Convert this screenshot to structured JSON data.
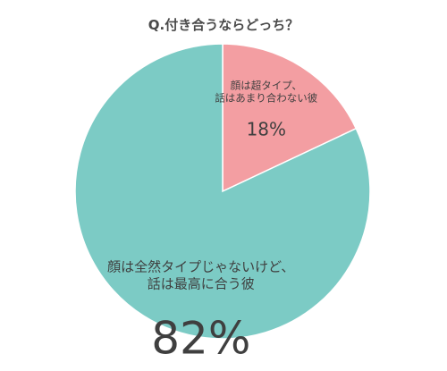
{
  "chart_data": {
    "type": "pie",
    "title": "Q.付き合うならどっち？",
    "slices": [
      {
        "label_lines": [
          "顔は超タイプ、",
          "話はあまり合わない彼"
        ],
        "value": 18,
        "value_label": "18%",
        "color": "#f39ea2"
      },
      {
        "label_lines": [
          "顔は全然タイプじゃないけど、",
          "話は最高に合う彼"
        ],
        "value": 82,
        "value_label": "82%",
        "color": "#7ccbc5"
      }
    ],
    "start_angle_deg": 0,
    "direction": "clockwise",
    "legend": "none"
  }
}
